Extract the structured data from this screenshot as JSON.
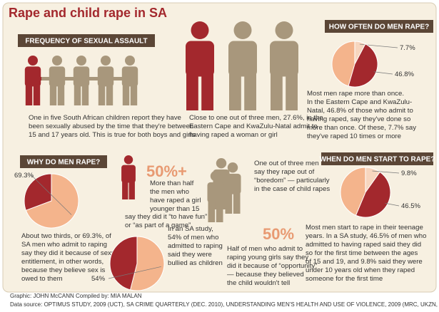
{
  "title": "Rape and child rape in SA",
  "frequency": {
    "header": "FREQUENCY OF SEXUAL ASSAULT",
    "children_text": [
      "One in five South African children report they have",
      "been sexually abused by the time that they're between",
      "15 and 17 years old. This is true for both boys and girls"
    ],
    "men_text": [
      "Close to one out of three men, 27.6%, in the",
      "Eastern Cape and KwaZulu-Natal admit to",
      "having raped a woman or girl"
    ]
  },
  "how_often": {
    "header": "HOW OFTEN DO MEN RAPE?",
    "text": [
      "Most men rape more than once.",
      "In the Eastern Cape and KwaZulu-",
      "Natal, 46.8% of those who admit to",
      "having raped, say they've done so",
      "more than once. Of these, 7.7% say",
      "they've raped 10 times or more"
    ]
  },
  "why": {
    "header": "WHY DO MEN RAPE?",
    "entitlement_text": [
      "About two thirds, or 69.3%, of",
      "SA men who admit to raping",
      "say they did it because of sexual",
      "entitlement, in other words,",
      "because they believe sex is",
      "owed to them"
    ],
    "fun_big": "50%+",
    "fun_text": [
      "More than half",
      "the men who",
      "have raped a girl",
      "younger than 15"
    ],
    "fun_text2": [
      "say they did it “to have fun”",
      "or “as part of a game”"
    ],
    "bullied_text": [
      "In an SA study,",
      "54% of men who",
      "admitted to raping",
      "said they were",
      "bullied as children"
    ],
    "boredom_text": [
      "One out of three men",
      "say they rape out of",
      "“boredom” — particularly",
      "in the case of child rapes"
    ],
    "opportunity_big": "50%",
    "opportunity_text": [
      "Half of men who admit to",
      "raping young girls say they",
      "did it because of “opportunity”",
      "— because they believed",
      "the child wouldn't tell"
    ]
  },
  "when": {
    "header": "WHEN DO MEN START TO RAPE?",
    "text": [
      "Most men start to rape in their teenage",
      "years. In a SA study, 46.5% of men who",
      "admitted to having raped said they did",
      "so for the first time between the ages",
      "of 15 and 19, and 9.8% said they were",
      "under 10 years old when they raped",
      "someone for the first time"
    ]
  },
  "footer": {
    "credit": "Graphic: JOHN McCANN  Compiled by: MIA MALAN",
    "source": "Data source: OPTIMUS STUDY, 2009 (UCT), SA CRIME QUARTERLY (DEC. 2010), UNDERSTANDING MEN'S HEALTH AND USE OF VIOLENCE, 2009 (MRC, UKZN, EMORY UNI.)"
  },
  "chart_data": [
    {
      "type": "pie",
      "values": [
        7.7,
        46.8
      ],
      "value_labels": [
        "7.7%",
        "46.8%"
      ],
      "colors": [
        "#f7d6bf",
        "#a3282d"
      ],
      "base_color": "#f4b48c"
    },
    {
      "type": "pie",
      "values": [
        69.3
      ],
      "value_labels": [
        "69.3%"
      ],
      "colors": [
        "#f4b48c"
      ],
      "base_color": "#a3282d"
    },
    {
      "type": "pie",
      "values": [
        54
      ],
      "value_labels": [
        "54%"
      ],
      "colors": [
        "#f4b48c"
      ],
      "base_color": "#a3282d"
    },
    {
      "type": "pie",
      "values": [
        9.8,
        46.5
      ],
      "value_labels": [
        "9.8%",
        "46.5%"
      ],
      "colors": [
        "#f7d6bf",
        "#a3282d"
      ],
      "base_color": "#f4b48c"
    }
  ]
}
